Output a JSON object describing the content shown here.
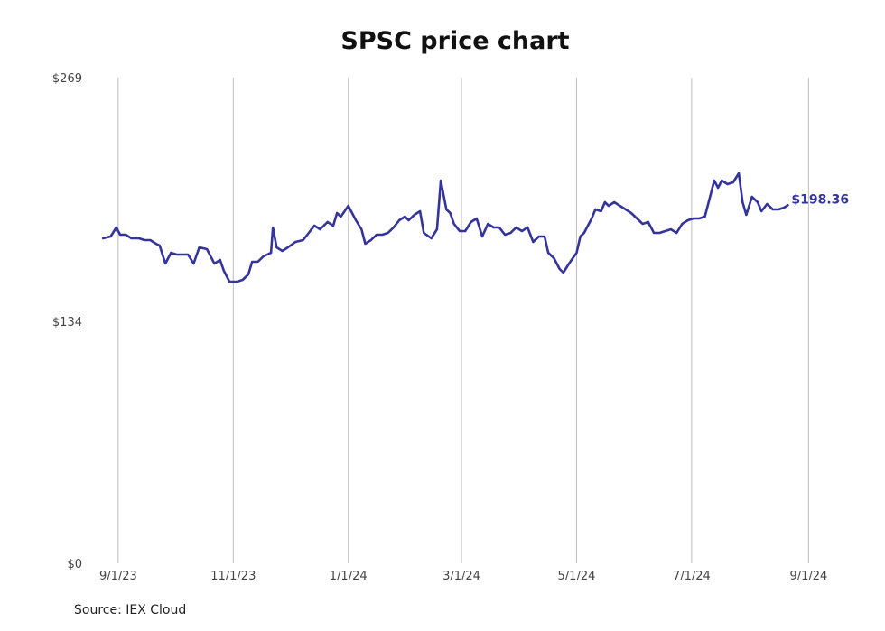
{
  "chart_data": {
    "type": "line",
    "title": "SPSC price chart",
    "source": "Source: IEX Cloud",
    "xlabel": "",
    "ylabel": "",
    "y_ticks": [
      "$0",
      "$134",
      "$269"
    ],
    "ylim": [
      0,
      269
    ],
    "x_ticks": [
      "9/1/23",
      "11/1/23",
      "1/1/24",
      "3/1/24",
      "5/1/24",
      "7/1/24",
      "9/1/24"
    ],
    "x_tick_dates": [
      "2023-09-01",
      "2023-11-01",
      "2024-01-01",
      "2024-03-01",
      "2024-05-01",
      "2024-07-01",
      "2024-09-01"
    ],
    "xlim": [
      "2023-08-22",
      "2024-09-08"
    ],
    "grid": "vertical",
    "line_color": "#34349a",
    "last_value_label": "$198.36",
    "series": [
      {
        "points": [
          [
            "2023-08-24",
            180
          ],
          [
            "2023-08-28",
            181
          ],
          [
            "2023-08-31",
            186
          ],
          [
            "2023-09-02",
            182
          ],
          [
            "2023-09-05",
            182
          ],
          [
            "2023-09-08",
            180
          ],
          [
            "2023-09-12",
            180
          ],
          [
            "2023-09-15",
            179
          ],
          [
            "2023-09-18",
            179
          ],
          [
            "2023-09-21",
            177
          ],
          [
            "2023-09-23",
            176
          ],
          [
            "2023-09-26",
            166
          ],
          [
            "2023-09-29",
            172
          ],
          [
            "2023-10-02",
            171
          ],
          [
            "2023-10-05",
            171
          ],
          [
            "2023-10-08",
            171
          ],
          [
            "2023-10-11",
            166
          ],
          [
            "2023-10-14",
            175
          ],
          [
            "2023-10-18",
            174
          ],
          [
            "2023-10-22",
            166
          ],
          [
            "2023-10-25",
            168
          ],
          [
            "2023-10-27",
            162
          ],
          [
            "2023-10-30",
            156
          ],
          [
            "2023-11-03",
            156
          ],
          [
            "2023-11-06",
            157
          ],
          [
            "2023-11-09",
            160
          ],
          [
            "2023-11-11",
            167
          ],
          [
            "2023-11-14",
            167
          ],
          [
            "2023-11-17",
            170
          ],
          [
            "2023-11-19",
            171
          ],
          [
            "2023-11-21",
            172
          ],
          [
            "2023-11-22",
            186
          ],
          [
            "2023-11-24",
            175
          ],
          [
            "2023-11-27",
            173
          ],
          [
            "2023-11-30",
            175
          ],
          [
            "2023-12-04",
            178
          ],
          [
            "2023-12-08",
            179
          ],
          [
            "2023-12-11",
            183
          ],
          [
            "2023-12-14",
            187
          ],
          [
            "2023-12-17",
            185
          ],
          [
            "2023-12-21",
            189
          ],
          [
            "2023-12-24",
            187
          ],
          [
            "2023-12-26",
            194
          ],
          [
            "2023-12-28",
            192
          ],
          [
            "2024-01-01",
            198
          ],
          [
            "2024-01-05",
            190
          ],
          [
            "2024-01-08",
            185
          ],
          [
            "2024-01-10",
            177
          ],
          [
            "2024-01-13",
            179
          ],
          [
            "2024-01-16",
            182
          ],
          [
            "2024-01-19",
            182
          ],
          [
            "2024-01-22",
            183
          ],
          [
            "2024-01-25",
            186
          ],
          [
            "2024-01-28",
            190
          ],
          [
            "2024-01-31",
            192
          ],
          [
            "2024-02-02",
            190
          ],
          [
            "2024-02-05",
            193
          ],
          [
            "2024-02-08",
            195
          ],
          [
            "2024-02-10",
            183
          ],
          [
            "2024-02-14",
            180
          ],
          [
            "2024-02-17",
            185
          ],
          [
            "2024-02-19",
            212
          ],
          [
            "2024-02-22",
            196
          ],
          [
            "2024-02-24",
            194
          ],
          [
            "2024-02-26",
            188
          ],
          [
            "2024-02-29",
            184
          ],
          [
            "2024-03-03",
            184
          ],
          [
            "2024-03-06",
            189
          ],
          [
            "2024-03-09",
            191
          ],
          [
            "2024-03-12",
            181
          ],
          [
            "2024-03-15",
            188
          ],
          [
            "2024-03-18",
            186
          ],
          [
            "2024-03-21",
            186
          ],
          [
            "2024-03-24",
            182
          ],
          [
            "2024-03-27",
            183
          ],
          [
            "2024-03-30",
            186
          ],
          [
            "2024-04-02",
            184
          ],
          [
            "2024-04-05",
            186
          ],
          [
            "2024-04-08",
            178
          ],
          [
            "2024-04-11",
            181
          ],
          [
            "2024-04-14",
            181
          ],
          [
            "2024-04-16",
            172
          ],
          [
            "2024-04-19",
            169
          ],
          [
            "2024-04-22",
            163
          ],
          [
            "2024-04-24",
            161
          ],
          [
            "2024-04-27",
            166
          ],
          [
            "2024-05-01",
            172
          ],
          [
            "2024-05-03",
            181
          ],
          [
            "2024-05-05",
            183
          ],
          [
            "2024-05-07",
            187
          ],
          [
            "2024-05-09",
            191
          ],
          [
            "2024-05-11",
            196
          ],
          [
            "2024-05-14",
            195
          ],
          [
            "2024-05-16",
            200
          ],
          [
            "2024-05-18",
            198
          ],
          [
            "2024-05-21",
            200
          ],
          [
            "2024-05-24",
            198
          ],
          [
            "2024-05-27",
            196
          ],
          [
            "2024-05-30",
            194
          ],
          [
            "2024-06-02",
            191
          ],
          [
            "2024-06-05",
            188
          ],
          [
            "2024-06-08",
            189
          ],
          [
            "2024-06-11",
            183
          ],
          [
            "2024-06-14",
            183
          ],
          [
            "2024-06-17",
            184
          ],
          [
            "2024-06-20",
            185
          ],
          [
            "2024-06-23",
            183
          ],
          [
            "2024-06-26",
            188
          ],
          [
            "2024-06-29",
            190
          ],
          [
            "2024-07-02",
            191
          ],
          [
            "2024-07-05",
            191
          ],
          [
            "2024-07-08",
            192
          ],
          [
            "2024-07-11",
            204
          ],
          [
            "2024-07-13",
            212
          ],
          [
            "2024-07-15",
            208
          ],
          [
            "2024-07-17",
            212
          ],
          [
            "2024-07-20",
            210
          ],
          [
            "2024-07-23",
            211
          ],
          [
            "2024-07-26",
            216
          ],
          [
            "2024-07-28",
            200
          ],
          [
            "2024-07-30",
            193
          ],
          [
            "2024-08-02",
            203
          ],
          [
            "2024-08-05",
            200
          ],
          [
            "2024-08-07",
            195
          ],
          [
            "2024-08-10",
            199
          ],
          [
            "2024-08-13",
            196
          ],
          [
            "2024-08-16",
            196
          ],
          [
            "2024-08-19",
            197
          ],
          [
            "2024-08-21",
            198.36
          ]
        ]
      }
    ]
  }
}
